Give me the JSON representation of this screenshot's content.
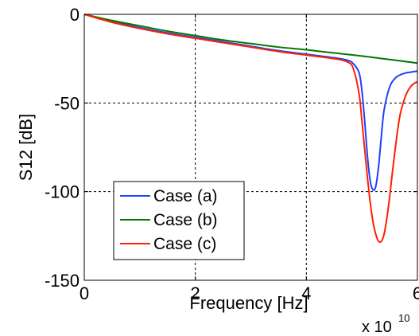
{
  "chart_data": {
    "type": "line",
    "xlabel": "Frequency [Hz]",
    "ylabel": "S12 [dB]",
    "x_exponent_label": "x 10",
    "x_exponent_power": "10",
    "xlim": [
      0,
      6
    ],
    "ylim": [
      -150,
      0
    ],
    "xticks": [
      "0",
      "2",
      "4",
      "6"
    ],
    "yticks": [
      "0",
      "-50",
      "-100",
      "-150"
    ],
    "xtick_values": [
      0,
      2,
      4,
      6
    ],
    "ytick_values": [
      0,
      -50,
      -100,
      -150
    ],
    "grid": true,
    "legend_position": "lower-left",
    "series": [
      {
        "name": "Case (a)",
        "color": "#1f3fff",
        "x": [
          0,
          0.5,
          1,
          1.5,
          2,
          2.5,
          3,
          3.5,
          4,
          4.5,
          4.75,
          4.85,
          4.95,
          5.0,
          5.05,
          5.1,
          5.15,
          5.2,
          5.25,
          5.3,
          5.35,
          5.4,
          5.5,
          5.6,
          5.7,
          5.8,
          5.9,
          6.0
        ],
        "y": [
          0,
          -4,
          -7.5,
          -10.5,
          -13,
          -15.5,
          -18,
          -20.5,
          -22.5,
          -24.5,
          -26,
          -28,
          -33,
          -43,
          -60,
          -80,
          -94,
          -99,
          -97,
          -86,
          -69,
          -54,
          -41,
          -36,
          -34,
          -33,
          -32.5,
          -32
        ]
      },
      {
        "name": "Case (b)",
        "color": "#007a00",
        "x": [
          0,
          0.5,
          1,
          1.5,
          2,
          2.5,
          3,
          3.5,
          4,
          4.5,
          5,
          5.5,
          6
        ],
        "y": [
          0,
          -3.5,
          -6.5,
          -9.5,
          -12,
          -14.5,
          -16.5,
          -18.5,
          -20,
          -21.8,
          -23.5,
          -25.5,
          -27.5
        ]
      },
      {
        "name": "Case (c)",
        "color": "#ff2000",
        "x": [
          0,
          0.5,
          1,
          1.5,
          2,
          2.5,
          3,
          3.5,
          4,
          4.5,
          4.75,
          4.85,
          4.95,
          5.0,
          5.05,
          5.1,
          5.15,
          5.2,
          5.25,
          5.3,
          5.35,
          5.4,
          5.45,
          5.5,
          5.55,
          5.6,
          5.65,
          5.7,
          5.8,
          5.9,
          6.0
        ],
        "y": [
          0,
          -4.5,
          -8,
          -11,
          -13.5,
          -16,
          -18.5,
          -21,
          -23,
          -25,
          -27,
          -31,
          -45,
          -60,
          -76,
          -92,
          -106,
          -117,
          -124,
          -128,
          -128,
          -124,
          -115,
          -103,
          -89,
          -76,
          -64,
          -55,
          -45,
          -40,
          -38
        ]
      }
    ]
  }
}
